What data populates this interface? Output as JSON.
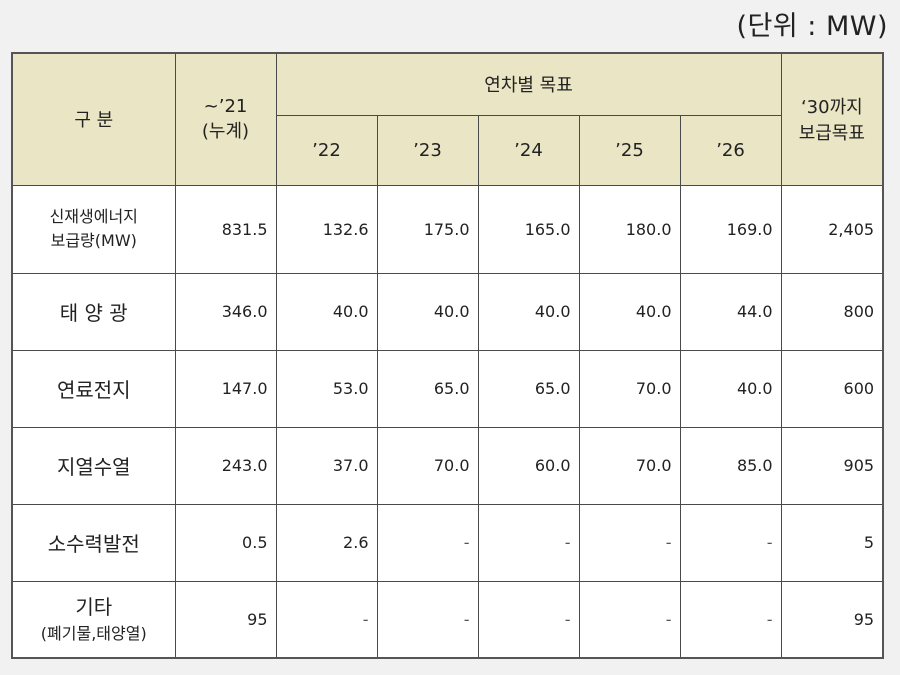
{
  "unit_label": "(단위 : MW)",
  "header": {
    "category": "구 분",
    "cumulative_line1": "~’21",
    "cumulative_line2": "(누계)",
    "annual_target": "연차별 목표",
    "years": [
      "’22",
      "’23",
      "’24",
      "’25",
      "’26"
    ],
    "target2030_line1": "‘30까지",
    "target2030_line2": "보급목표"
  },
  "rows": [
    {
      "name_line1": "신재생에너지",
      "name_line2": "보급량(MW)",
      "cumulative": "831.5",
      "years": [
        "132.6",
        "175.0",
        "165.0",
        "180.0",
        "169.0"
      ],
      "target": "2,405"
    },
    {
      "name_line1": "태 양 광",
      "name_line2": "",
      "cumulative": "346.0",
      "years": [
        "40.0",
        "40.0",
        "40.0",
        "40.0",
        "44.0"
      ],
      "target": "800"
    },
    {
      "name_line1": "연료전지",
      "name_line2": "",
      "cumulative": "147.0",
      "years": [
        "53.0",
        "65.0",
        "65.0",
        "70.0",
        "40.0"
      ],
      "target": "600"
    },
    {
      "name_line1": "지열수열",
      "name_line2": "",
      "cumulative": "243.0",
      "years": [
        "37.0",
        "70.0",
        "60.0",
        "70.0",
        "85.0"
      ],
      "target": "905"
    },
    {
      "name_line1": "소수력발전",
      "name_line2": "",
      "cumulative": "0.5",
      "years": [
        "2.6",
        "-",
        "-",
        "-",
        "-"
      ],
      "target": "5"
    },
    {
      "name_line1": "기타",
      "name_line2": "(폐기물,태양열)",
      "cumulative": "95",
      "years": [
        "-",
        "-",
        "-",
        "-",
        "-"
      ],
      "target": "95"
    }
  ]
}
